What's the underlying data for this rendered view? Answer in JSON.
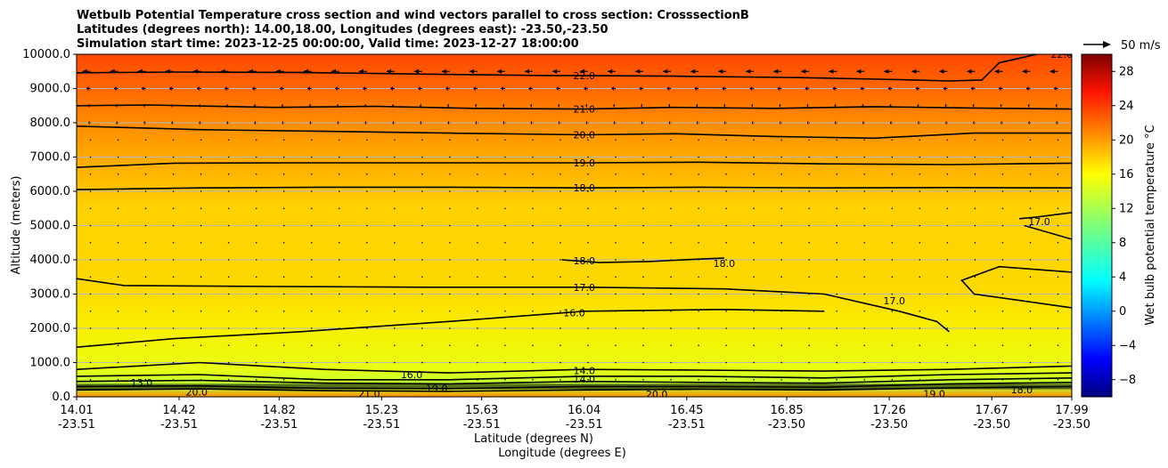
{
  "chart_data": {
    "type": "heatmap",
    "title_lines": [
      "Wetbulb Potential Temperature cross section and wind vectors parallel to cross section: CrosssectionB",
      "Latitudes (degrees north): 14.00,18.00, Longitudes (degrees east): -23.50,-23.50",
      "Simulation start time: 2023-12-25 00:00:00, Valid time: 2023-12-27 18:00:00"
    ],
    "xlabel_lines": [
      "Latitude (degrees N)",
      "Longitude (degrees E)"
    ],
    "ylabel": "Altitude (meters)",
    "xlim": [
      14.01,
      17.99
    ],
    "ylim": [
      0,
      10000
    ],
    "x_ticks": [
      {
        "lat": "14.01",
        "lon": "-23.51",
        "value": 14.01
      },
      {
        "lat": "14.42",
        "lon": "-23.51",
        "value": 14.42
      },
      {
        "lat": "14.82",
        "lon": "-23.51",
        "value": 14.82
      },
      {
        "lat": "15.23",
        "lon": "-23.51",
        "value": 15.23
      },
      {
        "lat": "15.63",
        "lon": "-23.51",
        "value": 15.63
      },
      {
        "lat": "16.04",
        "lon": "-23.51",
        "value": 16.04
      },
      {
        "lat": "16.45",
        "lon": "-23.51",
        "value": 16.45
      },
      {
        "lat": "16.85",
        "lon": "-23.50",
        "value": 16.85
      },
      {
        "lat": "17.26",
        "lon": "-23.50",
        "value": 17.26
      },
      {
        "lat": "17.67",
        "lon": "-23.50",
        "value": 17.67
      },
      {
        "lat": "17.99",
        "lon": "-23.50",
        "value": 17.99
      }
    ],
    "y_ticks": [
      {
        "label": "0.0",
        "value": 0
      },
      {
        "label": "1000.0",
        "value": 1000
      },
      {
        "label": "2000.0",
        "value": 2000
      },
      {
        "label": "3000.0",
        "value": 3000
      },
      {
        "label": "4000.0",
        "value": 4000
      },
      {
        "label": "5000.0",
        "value": 5000
      },
      {
        "label": "6000.0",
        "value": 6000
      },
      {
        "label": "7000.0",
        "value": 7000
      },
      {
        "label": "8000.0",
        "value": 8000
      },
      {
        "label": "9000.0",
        "value": 9000
      },
      {
        "label": "10000.0",
        "value": 10000
      }
    ],
    "grid": "horizontal",
    "colorbar": {
      "label": "Wet bulb potential temperature $^\\circ$C",
      "label_text": "Wet bulb potential temperature °C",
      "range": [
        -10,
        30
      ],
      "ticks": [
        {
          "label": "−8",
          "value": -8
        },
        {
          "label": "−4",
          "value": -4
        },
        {
          "label": "0",
          "value": 0
        },
        {
          "label": "4",
          "value": 4
        },
        {
          "label": "8",
          "value": 8
        },
        {
          "label": "12",
          "value": 12
        },
        {
          "label": "16",
          "value": 16
        },
        {
          "label": "20",
          "value": 20
        },
        {
          "label": "24",
          "value": 24
        },
        {
          "label": "28",
          "value": 28
        }
      ],
      "colormap": "jet"
    },
    "wind_key": {
      "label": "50 m/s",
      "value": 50
    },
    "contours": [
      {
        "value": 22.0,
        "label": "22.0",
        "points": [
          [
            14.01,
            9460
          ],
          [
            14.4,
            9480
          ],
          [
            14.9,
            9470
          ],
          [
            15.4,
            9420
          ],
          [
            15.9,
            9380
          ],
          [
            16.0,
            9380
          ],
          [
            16.4,
            9360
          ],
          [
            16.9,
            9320
          ],
          [
            17.3,
            9260
          ],
          [
            17.5,
            9220
          ],
          [
            17.63,
            9250
          ],
          [
            17.7,
            9750
          ],
          [
            17.85,
            10000
          ]
        ]
      },
      {
        "value": 22.0,
        "label": "22.0",
        "points": [
          [
            17.95,
            10000
          ],
          [
            17.99,
            9980
          ]
        ]
      },
      {
        "value": 21.0,
        "label": "21.0",
        "points": [
          [
            14.01,
            8500
          ],
          [
            14.3,
            8520
          ],
          [
            14.8,
            8450
          ],
          [
            15.2,
            8480
          ],
          [
            15.6,
            8420
          ],
          [
            16.04,
            8400
          ],
          [
            16.4,
            8450
          ],
          [
            16.8,
            8420
          ],
          [
            17.2,
            8470
          ],
          [
            17.6,
            8430
          ],
          [
            17.99,
            8400
          ]
        ]
      },
      {
        "value": 20.0,
        "label": "20.0",
        "points": [
          [
            14.01,
            7900
          ],
          [
            14.5,
            7800
          ],
          [
            15.0,
            7750
          ],
          [
            15.5,
            7700
          ],
          [
            16.04,
            7650
          ],
          [
            16.4,
            7680
          ],
          [
            16.8,
            7600
          ],
          [
            17.2,
            7550
          ],
          [
            17.6,
            7700
          ],
          [
            17.99,
            7700
          ]
        ]
      },
      {
        "value": 19.0,
        "label": "19.0",
        "points": [
          [
            14.01,
            6700
          ],
          [
            14.4,
            6820
          ],
          [
            14.9,
            6830
          ],
          [
            15.5,
            6830
          ],
          [
            16.04,
            6830
          ],
          [
            16.5,
            6850
          ],
          [
            17.0,
            6800
          ],
          [
            17.5,
            6780
          ],
          [
            17.99,
            6820
          ]
        ]
      },
      {
        "value": 18.0,
        "label": "18.0",
        "points": [
          [
            14.01,
            6050
          ],
          [
            14.5,
            6100
          ],
          [
            15.0,
            6120
          ],
          [
            15.5,
            6120
          ],
          [
            16.04,
            6100
          ],
          [
            16.5,
            6120
          ],
          [
            17.0,
            6100
          ],
          [
            17.5,
            6110
          ],
          [
            17.99,
            6100
          ]
        ]
      },
      {
        "value": 18.0,
        "label": "18.0",
        "points": [
          [
            15.95,
            4000
          ],
          [
            16.1,
            3920
          ],
          [
            16.3,
            3950
          ],
          [
            16.5,
            4020
          ],
          [
            16.6,
            4050
          ]
        ]
      },
      {
        "value": 17.0,
        "label": "17.0",
        "points": [
          [
            17.78,
            5200
          ],
          [
            17.85,
            5250
          ],
          [
            17.99,
            5380
          ]
        ]
      },
      {
        "value": 17.0,
        "label": "17.0",
        "points": [
          [
            17.8,
            5000
          ],
          [
            17.99,
            4600
          ]
        ]
      },
      {
        "value": 17.0,
        "label": "17.0",
        "points": [
          [
            14.01,
            3450
          ],
          [
            14.2,
            3250
          ],
          [
            14.8,
            3220
          ],
          [
            15.4,
            3200
          ],
          [
            16.04,
            3200
          ],
          [
            16.6,
            3150
          ],
          [
            17.0,
            3000
          ],
          [
            17.3,
            2500
          ],
          [
            17.45,
            2200
          ],
          [
            17.5,
            1900
          ]
        ]
      },
      {
        "value": 17.0,
        "label": "17.0",
        "points": [
          [
            17.99,
            3640
          ],
          [
            17.7,
            3800
          ],
          [
            17.55,
            3400
          ],
          [
            17.6,
            3000
          ],
          [
            17.99,
            2600
          ]
        ]
      },
      {
        "value": 16.0,
        "label": "16.0",
        "points": [
          [
            14.01,
            1450
          ],
          [
            14.4,
            1700
          ],
          [
            14.9,
            1900
          ],
          [
            15.5,
            2200
          ],
          [
            16.04,
            2500
          ],
          [
            16.6,
            2550
          ],
          [
            17.0,
            2500
          ]
        ]
      },
      {
        "value": 14.0,
        "label": "14.0",
        "points": [
          [
            14.01,
            800
          ],
          [
            14.5,
            1000
          ],
          [
            15.0,
            800
          ],
          [
            15.5,
            700
          ],
          [
            16.04,
            800
          ],
          [
            16.5,
            780
          ],
          [
            17.0,
            750
          ],
          [
            17.5,
            800
          ],
          [
            17.99,
            900
          ]
        ]
      },
      {
        "value": 14.0,
        "label": "14.0",
        "points": [
          [
            14.01,
            600
          ],
          [
            14.5,
            650
          ],
          [
            15.0,
            500
          ],
          [
            15.5,
            500
          ],
          [
            16.04,
            600
          ],
          [
            16.5,
            600
          ],
          [
            17.0,
            550
          ],
          [
            17.5,
            650
          ],
          [
            17.99,
            700
          ]
        ]
      },
      {
        "value": 13.0,
        "label": "13.0",
        "points": [
          [
            14.01,
            450
          ],
          [
            14.5,
            480
          ],
          [
            15.0,
            400
          ],
          [
            15.5,
            380
          ],
          [
            16.04,
            450
          ],
          [
            16.5,
            420
          ],
          [
            17.0,
            400
          ],
          [
            17.5,
            500
          ],
          [
            17.99,
            550
          ]
        ]
      },
      {
        "value": 20.0,
        "label": "20.0",
        "points": [
          [
            14.01,
            300
          ],
          [
            14.5,
            320
          ],
          [
            15.0,
            250
          ],
          [
            15.5,
            240
          ],
          [
            16.04,
            300
          ],
          [
            16.5,
            300
          ],
          [
            17.0,
            280
          ],
          [
            17.5,
            380
          ],
          [
            17.99,
            420
          ]
        ]
      },
      {
        "value": 19.0,
        "label": "19.0",
        "points": [
          [
            14.01,
            200
          ],
          [
            14.5,
            230
          ],
          [
            15.0,
            180
          ],
          [
            15.5,
            160
          ],
          [
            16.04,
            200
          ],
          [
            16.5,
            220
          ],
          [
            17.0,
            200
          ],
          [
            17.5,
            260
          ],
          [
            17.99,
            300
          ]
        ]
      }
    ],
    "contour_labels": [
      {
        "text": "22.0",
        "x": 16.04,
        "y": 9380
      },
      {
        "text": "22.0",
        "x": 17.95,
        "y": 10000
      },
      {
        "text": "21.0",
        "x": 16.04,
        "y": 8400
      },
      {
        "text": "20.0",
        "x": 16.04,
        "y": 7650
      },
      {
        "text": "19.0",
        "x": 16.04,
        "y": 6830
      },
      {
        "text": "18.0",
        "x": 16.04,
        "y": 6100
      },
      {
        "text": "18.0",
        "x": 16.04,
        "y": 3980
      },
      {
        "text": "18.0",
        "x": 16.6,
        "y": 3900
      },
      {
        "text": "17.0",
        "x": 17.86,
        "y": 5120
      },
      {
        "text": "17.0",
        "x": 16.04,
        "y": 3200
      },
      {
        "text": "17.0",
        "x": 17.28,
        "y": 2800
      },
      {
        "text": "16.0",
        "x": 16.0,
        "y": 2450
      },
      {
        "text": "16.0",
        "x": 15.35,
        "y": 650
      },
      {
        "text": "14.0",
        "x": 16.04,
        "y": 760
      },
      {
        "text": "14.0",
        "x": 16.04,
        "y": 520
      },
      {
        "text": "13.0",
        "x": 14.27,
        "y": 420
      },
      {
        "text": "19.0",
        "x": 15.45,
        "y": 250
      },
      {
        "text": "19.0",
        "x": 17.44,
        "y": 90
      },
      {
        "text": "18.0",
        "x": 17.79,
        "y": 210
      },
      {
        "text": "20.0",
        "x": 16.33,
        "y": 80
      },
      {
        "text": "21.0",
        "x": 15.18,
        "y": 90
      },
      {
        "text": "20.0",
        "x": 14.49,
        "y": 140
      }
    ],
    "wind_vector_rows_m": [
      9500,
      9000,
      8500,
      8000,
      7500,
      7000,
      6500,
      6000,
      5500,
      5000,
      4500,
      4000,
      3500,
      3000,
      2500,
      2000,
      1500,
      1000,
      500
    ],
    "wind_vector_lengths_ms": [
      20,
      10,
      6,
      5,
      3,
      3,
      1,
      1,
      1,
      1,
      1,
      1,
      1,
      1,
      1,
      1,
      1,
      1,
      2
    ]
  }
}
